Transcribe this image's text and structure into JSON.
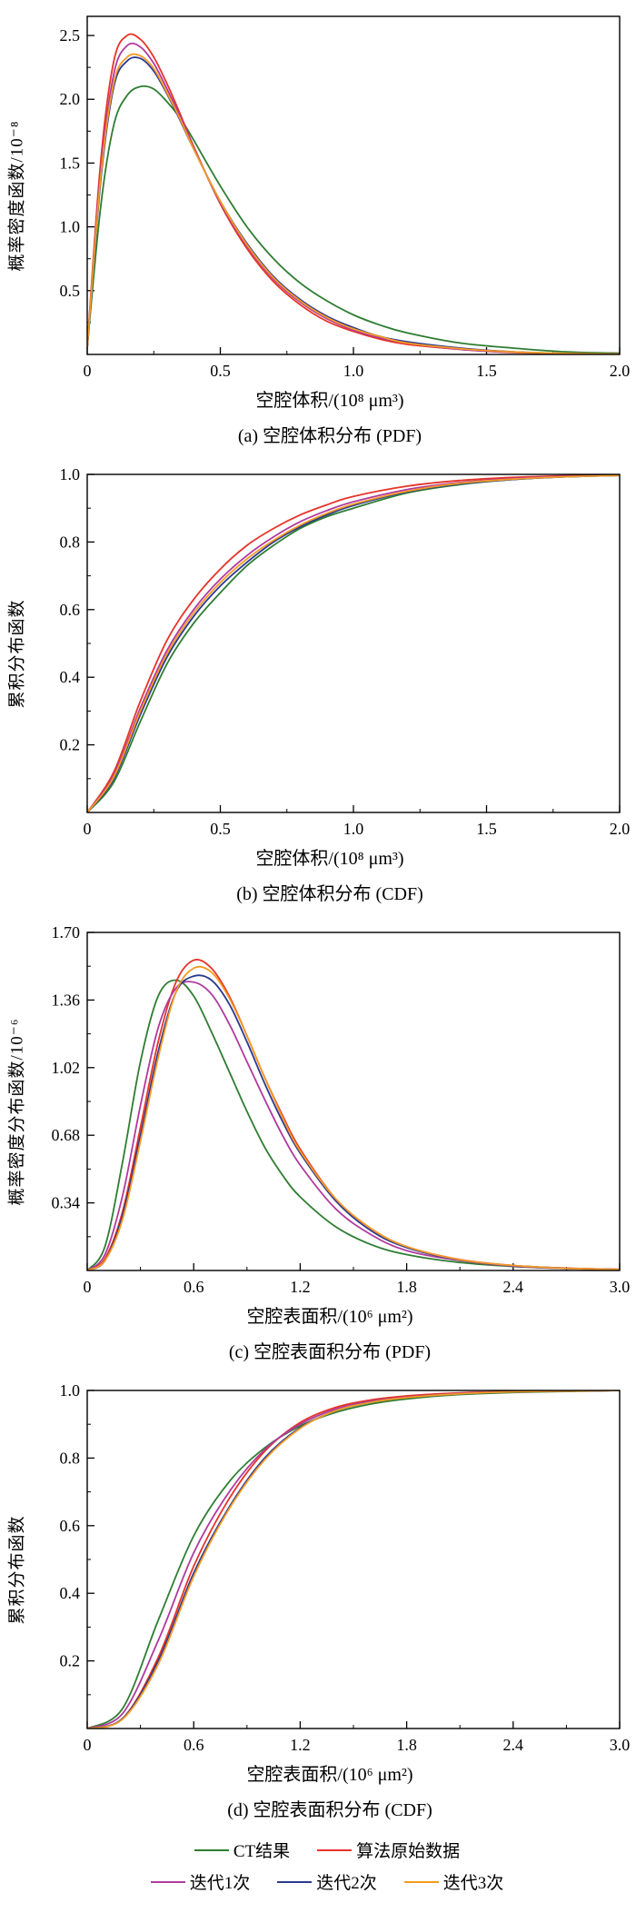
{
  "figure": {
    "background": "#ffffff"
  },
  "legend": {
    "rows": [
      [
        {
          "label": "CT结果",
          "color": "#2e7d32"
        },
        {
          "label": "算法原始数据",
          "color": "#e63329"
        }
      ],
      [
        {
          "label": "迭代1次",
          "color": "#b03a9e"
        },
        {
          "label": "迭代2次",
          "color": "#2b3990"
        },
        {
          "label": "迭代3次",
          "color": "#f59b23"
        }
      ]
    ]
  },
  "chart_data": [
    {
      "id": "a",
      "type": "line",
      "caption": "(a) 空腔体积分布 (PDF)",
      "xlabel": "空腔体积/(10⁸ μm³)",
      "ylabel": "概率密度函数/10⁻⁸",
      "xlim": [
        0,
        2.0
      ],
      "ylim": [
        0,
        2.65
      ],
      "xticks": [
        0,
        0.5,
        1.0,
        1.5,
        2.0
      ],
      "xtick_labels": [
        "0",
        "0.5",
        "1.0",
        "1.5",
        "2.0"
      ],
      "yticks": [
        0.5,
        1.0,
        1.5,
        2.0,
        2.5
      ],
      "ytick_labels": [
        "0.5",
        "1.0",
        "1.5",
        "2.0",
        "2.5"
      ],
      "grid": false,
      "x": [
        0,
        0.05,
        0.1,
        0.15,
        0.2,
        0.25,
        0.3,
        0.35,
        0.4,
        0.5,
        0.6,
        0.7,
        0.8,
        0.9,
        1.0,
        1.1,
        1.2,
        1.4,
        1.6,
        1.8,
        2.0
      ],
      "series": [
        {
          "name": "CT结果",
          "color": "#2e7d32",
          "y": [
            0.05,
            1.15,
            1.8,
            2.03,
            2.1,
            2.08,
            1.98,
            1.85,
            1.68,
            1.32,
            1.0,
            0.75,
            0.56,
            0.42,
            0.31,
            0.23,
            0.17,
            0.09,
            0.05,
            0.02,
            0.01
          ]
        },
        {
          "name": "算法原始数据",
          "color": "#e63329",
          "y": [
            0.05,
            1.5,
            2.3,
            2.5,
            2.47,
            2.33,
            2.12,
            1.88,
            1.63,
            1.18,
            0.83,
            0.57,
            0.39,
            0.26,
            0.18,
            0.12,
            0.08,
            0.04,
            0.015,
            0.006,
            0.002
          ]
        },
        {
          "name": "迭代1次",
          "color": "#b03a9e",
          "y": [
            0.05,
            1.42,
            2.2,
            2.42,
            2.41,
            2.28,
            2.08,
            1.86,
            1.62,
            1.19,
            0.85,
            0.59,
            0.41,
            0.28,
            0.19,
            0.13,
            0.09,
            0.04,
            0.018,
            0.007,
            0.003
          ]
        },
        {
          "name": "迭代2次",
          "color": "#2b3990",
          "y": [
            0.05,
            1.35,
            2.1,
            2.3,
            2.32,
            2.22,
            2.04,
            1.83,
            1.61,
            1.2,
            0.87,
            0.61,
            0.43,
            0.3,
            0.21,
            0.14,
            0.1,
            0.05,
            0.02,
            0.008,
            0.003
          ]
        },
        {
          "name": "迭代3次",
          "color": "#f59b23",
          "y": [
            0.05,
            1.38,
            2.13,
            2.33,
            2.34,
            2.24,
            2.05,
            1.84,
            1.61,
            1.2,
            0.86,
            0.6,
            0.42,
            0.29,
            0.2,
            0.14,
            0.09,
            0.045,
            0.02,
            0.008,
            0.003
          ]
        }
      ]
    },
    {
      "id": "b",
      "type": "line",
      "caption": "(b) 空腔体积分布 (CDF)",
      "xlabel": "空腔体积/(10⁸ μm³)",
      "ylabel": "累积分布函数",
      "xlim": [
        0,
        2.0
      ],
      "ylim": [
        0,
        1.0
      ],
      "xticks": [
        0,
        0.5,
        1.0,
        1.5,
        2.0
      ],
      "xtick_labels": [
        "0",
        "0.5",
        "1.0",
        "1.5",
        "2.0"
      ],
      "yticks": [
        0.2,
        0.4,
        0.6,
        0.8,
        1.0
      ],
      "ytick_labels": [
        "0.2",
        "0.4",
        "0.6",
        "0.8",
        "1.0"
      ],
      "grid": false,
      "x": [
        0,
        0.1,
        0.2,
        0.3,
        0.4,
        0.5,
        0.6,
        0.7,
        0.8,
        0.9,
        1.0,
        1.2,
        1.4,
        1.6,
        1.8,
        2.0
      ],
      "series": [
        {
          "name": "CT结果",
          "color": "#2e7d32",
          "y": [
            0,
            0.09,
            0.27,
            0.44,
            0.56,
            0.65,
            0.73,
            0.79,
            0.84,
            0.875,
            0.9,
            0.945,
            0.97,
            0.985,
            0.993,
            0.997
          ]
        },
        {
          "name": "算法原始数据",
          "color": "#e63329",
          "y": [
            0,
            0.12,
            0.33,
            0.51,
            0.63,
            0.72,
            0.79,
            0.84,
            0.88,
            0.91,
            0.935,
            0.965,
            0.982,
            0.991,
            0.996,
            0.999
          ]
        },
        {
          "name": "迭代1次",
          "color": "#b03a9e",
          "y": [
            0,
            0.11,
            0.31,
            0.48,
            0.6,
            0.69,
            0.76,
            0.815,
            0.86,
            0.893,
            0.919,
            0.955,
            0.976,
            0.988,
            0.994,
            0.998
          ]
        },
        {
          "name": "迭代2次",
          "color": "#2b3990",
          "y": [
            0,
            0.1,
            0.29,
            0.46,
            0.58,
            0.67,
            0.74,
            0.8,
            0.845,
            0.88,
            0.908,
            0.948,
            0.972,
            0.985,
            0.993,
            0.997
          ]
        },
        {
          "name": "迭代3次",
          "color": "#f59b23",
          "y": [
            0,
            0.105,
            0.3,
            0.47,
            0.59,
            0.68,
            0.75,
            0.805,
            0.85,
            0.885,
            0.912,
            0.95,
            0.974,
            0.986,
            0.993,
            0.997
          ]
        }
      ]
    },
    {
      "id": "c",
      "type": "line",
      "caption": "(c) 空腔表面积分布 (PDF)",
      "xlabel": "空腔表面积/(10⁶ μm²)",
      "ylabel": "概率密度分布函数/10⁻⁶",
      "xlim": [
        0,
        3.0
      ],
      "ylim": [
        0,
        1.7
      ],
      "xticks": [
        0,
        0.6,
        1.2,
        1.8,
        2.4,
        3.0
      ],
      "xtick_labels": [
        "0",
        "0.6",
        "1.2",
        "1.8",
        "2.4",
        "3.0"
      ],
      "yticks": [
        0.34,
        0.68,
        1.02,
        1.36,
        1.7
      ],
      "ytick_labels": [
        "0.34",
        "0.68",
        "1.02",
        "1.36",
        "1.70"
      ],
      "grid": false,
      "x": [
        0,
        0.1,
        0.2,
        0.3,
        0.4,
        0.5,
        0.6,
        0.7,
        0.8,
        0.9,
        1.0,
        1.1,
        1.2,
        1.4,
        1.6,
        1.8,
        2.1,
        2.4,
        2.7,
        3.0
      ],
      "series": [
        {
          "name": "CT结果",
          "color": "#2e7d32",
          "y": [
            0,
            0.12,
            0.55,
            1.05,
            1.38,
            1.46,
            1.38,
            1.2,
            1.0,
            0.8,
            0.62,
            0.48,
            0.37,
            0.22,
            0.13,
            0.08,
            0.04,
            0.02,
            0.01,
            0.005
          ]
        },
        {
          "name": "算法原始数据",
          "color": "#e63329",
          "y": [
            0,
            0.06,
            0.3,
            0.72,
            1.15,
            1.45,
            1.56,
            1.52,
            1.38,
            1.18,
            0.97,
            0.78,
            0.61,
            0.36,
            0.21,
            0.12,
            0.055,
            0.025,
            0.012,
            0.006
          ]
        },
        {
          "name": "迭代1次",
          "color": "#b03a9e",
          "y": [
            0,
            0.08,
            0.38,
            0.83,
            1.22,
            1.42,
            1.45,
            1.39,
            1.24,
            1.05,
            0.86,
            0.68,
            0.53,
            0.31,
            0.18,
            0.1,
            0.05,
            0.022,
            0.01,
            0.005
          ]
        },
        {
          "name": "迭代2次",
          "color": "#2b3990",
          "y": [
            0,
            0.05,
            0.28,
            0.68,
            1.1,
            1.4,
            1.48,
            1.46,
            1.34,
            1.15,
            0.94,
            0.75,
            0.59,
            0.35,
            0.2,
            0.115,
            0.052,
            0.024,
            0.011,
            0.005
          ]
        },
        {
          "name": "迭代3次",
          "color": "#f59b23",
          "y": [
            0,
            0.05,
            0.26,
            0.65,
            1.07,
            1.4,
            1.52,
            1.5,
            1.37,
            1.18,
            0.97,
            0.77,
            0.6,
            0.36,
            0.21,
            0.12,
            0.054,
            0.025,
            0.011,
            0.005
          ]
        }
      ]
    },
    {
      "id": "d",
      "type": "line",
      "caption": "(d) 空腔表面积分布 (CDF)",
      "xlabel": "空腔表面积/(10⁶ μm²)",
      "ylabel": "累积分布函数",
      "xlim": [
        0,
        3.0
      ],
      "ylim": [
        0,
        1.0
      ],
      "xticks": [
        0,
        0.6,
        1.2,
        1.8,
        2.4,
        3.0
      ],
      "xtick_labels": [
        "0",
        "0.6",
        "1.2",
        "1.8",
        "2.4",
        "3.0"
      ],
      "yticks": [
        0.2,
        0.4,
        0.6,
        0.8,
        1.0
      ],
      "ytick_labels": [
        "0.2",
        "0.4",
        "0.6",
        "0.8",
        "1.0"
      ],
      "grid": false,
      "x": [
        0,
        0.2,
        0.4,
        0.6,
        0.8,
        1.0,
        1.2,
        1.4,
        1.6,
        1.8,
        2.1,
        2.4,
        2.7,
        3.0
      ],
      "series": [
        {
          "name": "CT结果",
          "color": "#2e7d32",
          "y": [
            0,
            0.06,
            0.32,
            0.57,
            0.73,
            0.83,
            0.895,
            0.935,
            0.96,
            0.975,
            0.988,
            0.994,
            0.997,
            1.0
          ]
        },
        {
          "name": "算法原始数据",
          "color": "#e63329",
          "y": [
            0,
            0.03,
            0.21,
            0.48,
            0.68,
            0.82,
            0.905,
            0.95,
            0.972,
            0.984,
            0.993,
            0.997,
            0.999,
            1.0
          ]
        },
        {
          "name": "迭代1次",
          "color": "#b03a9e",
          "y": [
            0,
            0.045,
            0.26,
            0.52,
            0.7,
            0.825,
            0.9,
            0.945,
            0.968,
            0.98,
            0.991,
            0.996,
            0.998,
            1.0
          ]
        },
        {
          "name": "迭代2次",
          "color": "#2b3990",
          "y": [
            0,
            0.03,
            0.2,
            0.46,
            0.655,
            0.8,
            0.89,
            0.94,
            0.965,
            0.979,
            0.99,
            0.996,
            0.998,
            1.0
          ]
        },
        {
          "name": "迭代3次",
          "color": "#f59b23",
          "y": [
            0,
            0.028,
            0.19,
            0.45,
            0.65,
            0.795,
            0.888,
            0.94,
            0.965,
            0.979,
            0.99,
            0.996,
            0.998,
            1.0
          ]
        }
      ]
    }
  ]
}
